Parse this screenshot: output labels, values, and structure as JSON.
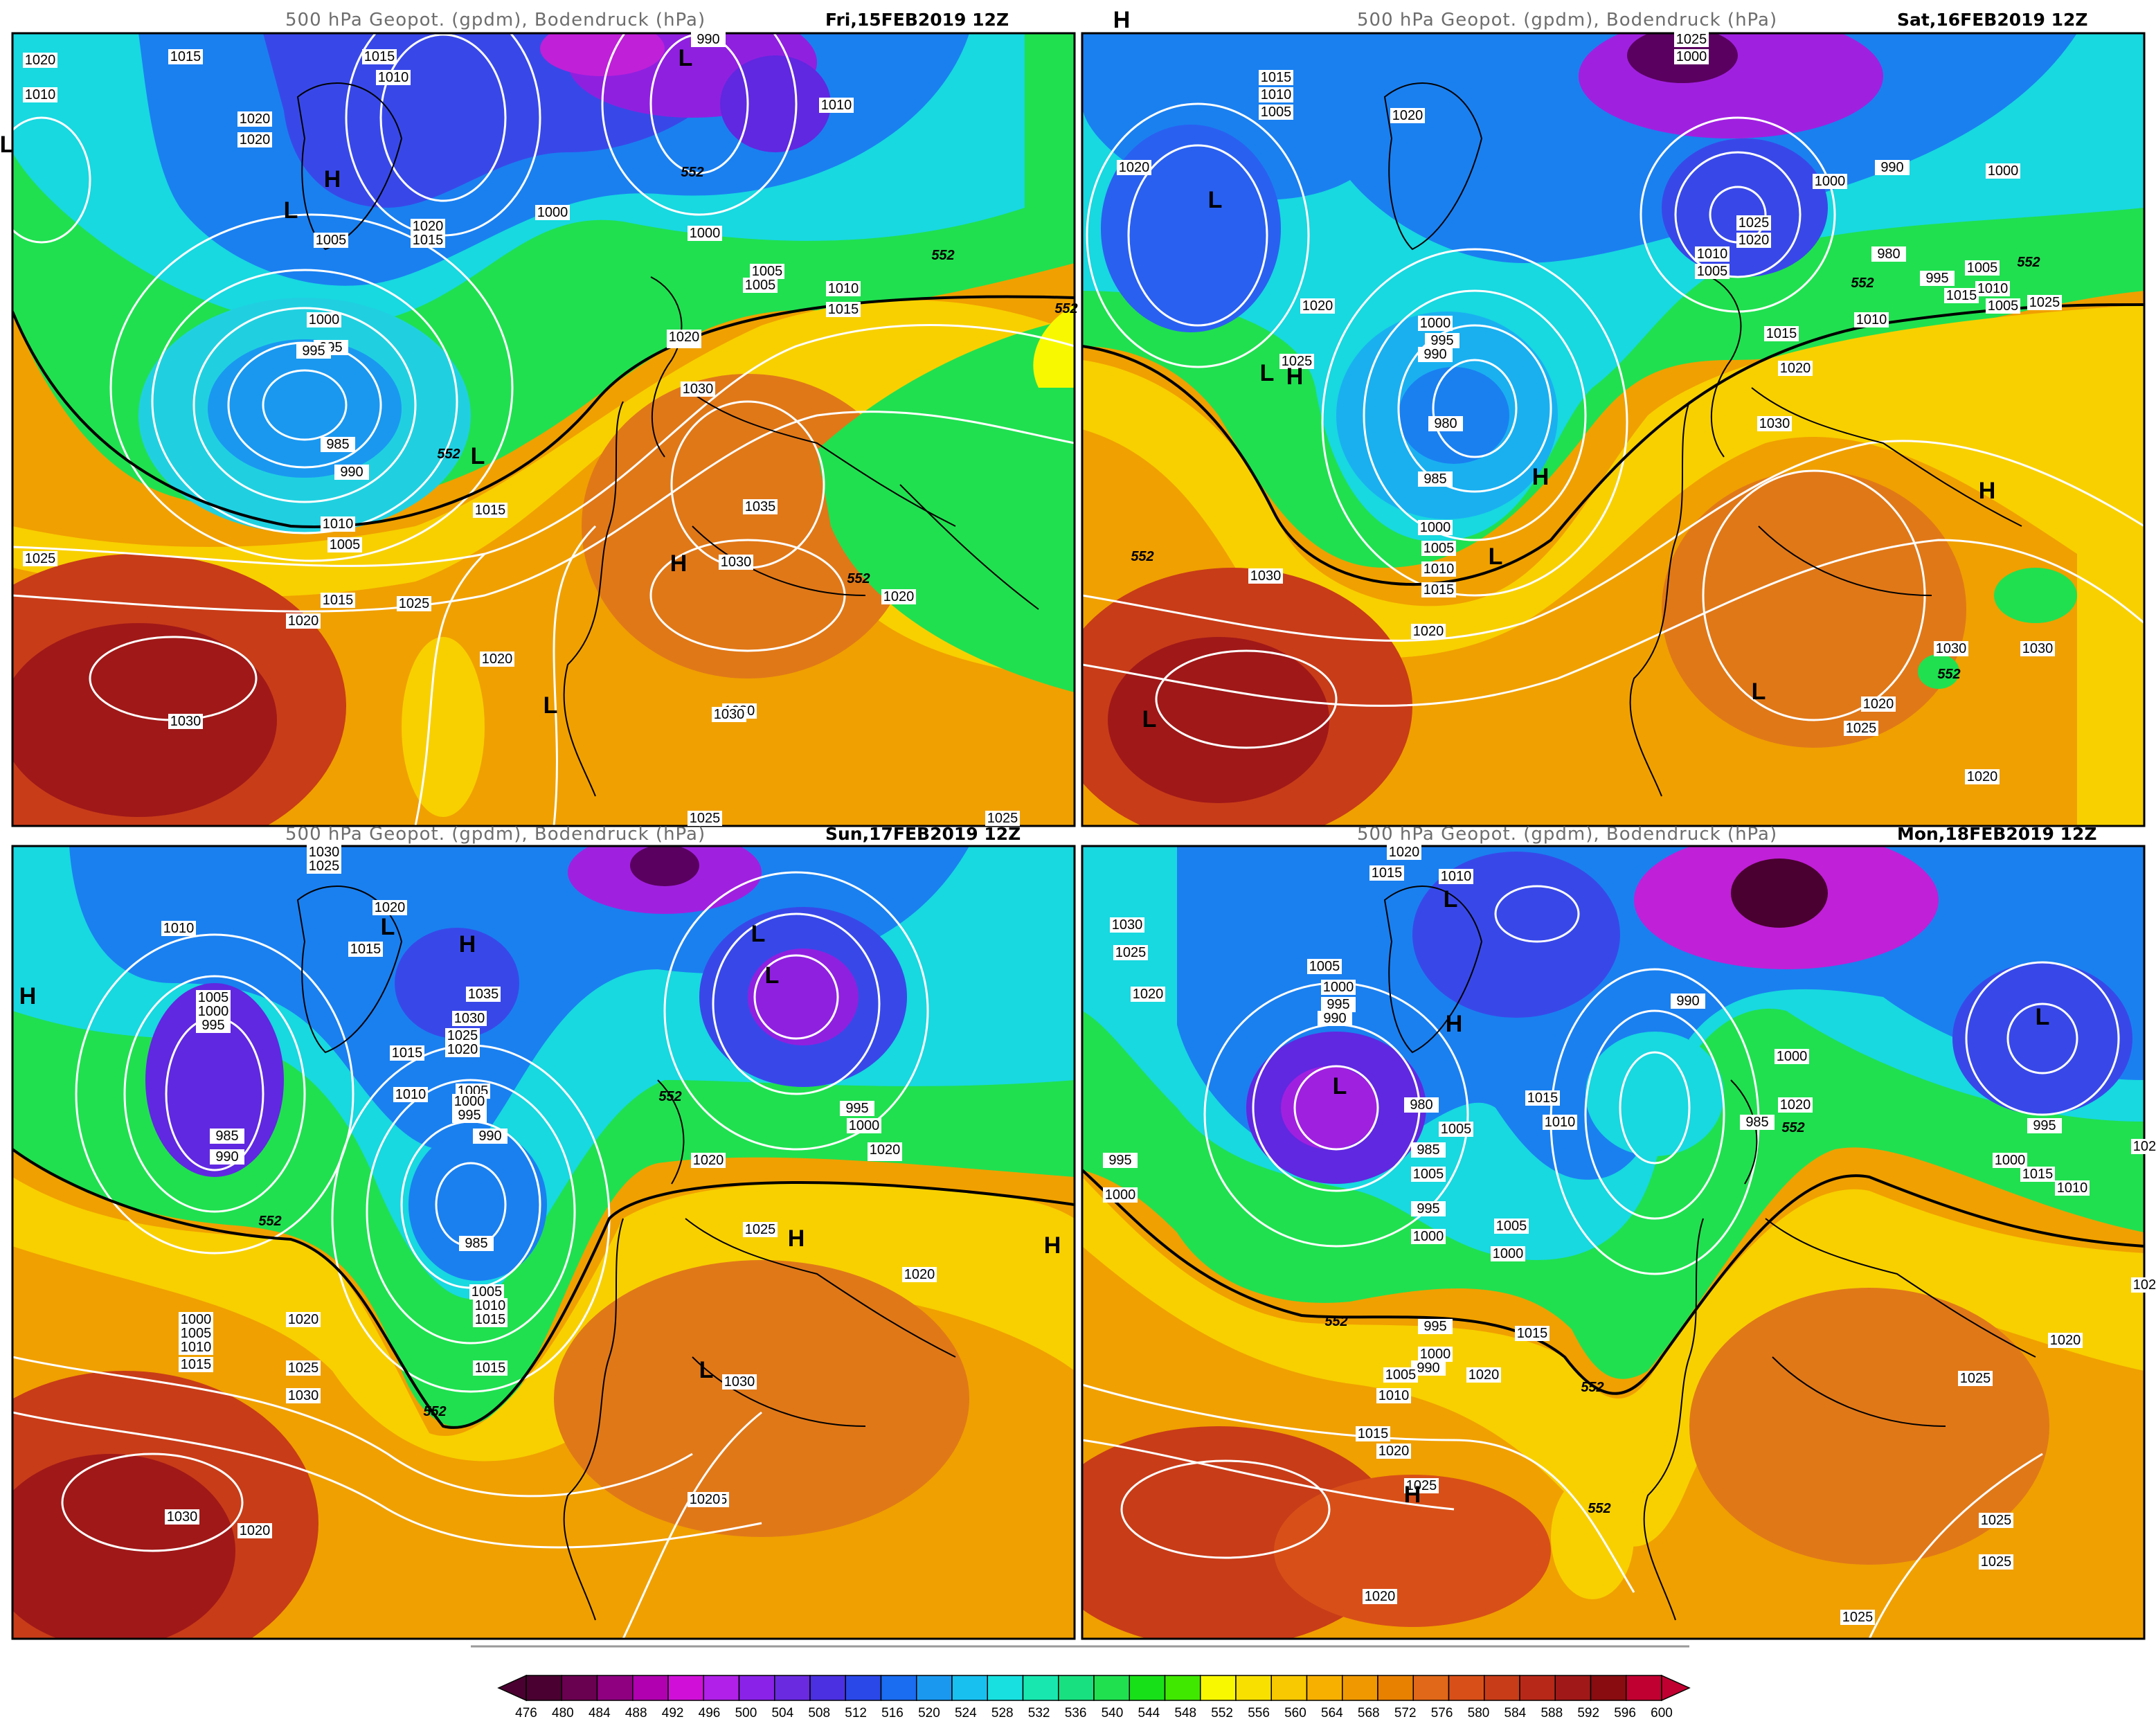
{
  "panels": [
    {
      "title": "500 hPa Geopot. (gpdm), Bodendruck (hPa)",
      "date": "Fri,15FEB2019 12Z",
      "isobar_labels": [
        "1020",
        "1015",
        "1015",
        "1010",
        "990",
        "1010",
        "1010",
        "1020",
        "1020",
        "1005",
        "1020",
        "1015",
        "1000",
        "995",
        "1000",
        "1005",
        "1010",
        "1015",
        "1020",
        "1025",
        "1030",
        "995",
        "985",
        "990",
        "1000",
        "1005",
        "1005",
        "1010",
        "1015",
        "1025",
        "1020",
        "1030",
        "1035",
        "1030",
        "1020",
        "1015",
        "1025",
        "1020",
        "1030",
        "1030",
        "1025",
        "1025"
      ],
      "height_labels": [
        "552",
        "552",
        "552",
        "552",
        "552"
      ],
      "systems": [
        "L",
        "H",
        "L",
        "L",
        "L",
        "H",
        "L"
      ]
    },
    {
      "title": "500 hPa Geopot. (gpdm), Bodendruck (hPa)",
      "date": "Sat,16FEB2019 12Z",
      "isobar_labels": [
        "1025",
        "1000",
        "1015",
        "1010",
        "1005",
        "1020",
        "1020",
        "990",
        "980",
        "995",
        "1000",
        "1000",
        "1005",
        "1010",
        "1025",
        "1020",
        "1010",
        "1005",
        "1020",
        "1025",
        "1000",
        "995",
        "990",
        "980",
        "985",
        "1000",
        "1005",
        "1010",
        "1015",
        "1020",
        "1030",
        "1030",
        "1030",
        "1020",
        "1025",
        "1020",
        "1030",
        "1015",
        "1005",
        "1010",
        "1015",
        "1020",
        "1025"
      ],
      "height_labels": [
        "552",
        "552",
        "552",
        "552"
      ],
      "systems": [
        "H",
        "L",
        "L",
        "L",
        "H",
        "H",
        "L",
        "L",
        "H"
      ]
    },
    {
      "title": "500 hPa Geopot. (gpdm), Bodendruck (hPa)",
      "date": "Sun,17FEB2019 12Z",
      "isobar_labels": [
        "1030",
        "1025",
        "1020",
        "1010",
        "1005",
        "1000",
        "995",
        "985",
        "990",
        "1015",
        "1035",
        "1030",
        "1025",
        "1020",
        "1015",
        "1010",
        "1005",
        "1000",
        "995",
        "990",
        "985",
        "995",
        "1000",
        "1005",
        "1010",
        "1015",
        "1015",
        "995",
        "1000",
        "1010",
        "1015",
        "1020",
        "1020",
        "1020",
        "1025",
        "1030",
        "1025",
        "1020",
        "1030",
        "1020",
        "1000",
        "1005",
        "1010",
        "1015",
        "1020",
        "1025",
        "1030"
      ],
      "height_labels": [
        "552",
        "552",
        "552"
      ],
      "systems": [
        "H",
        "L",
        "H",
        "L",
        "L",
        "H",
        "L",
        "H"
      ]
    },
    {
      "title": "500 hPa Geopot. (gpdm), Bodendruck (hPa)",
      "date": "Mon,18FEB2019 12Z",
      "isobar_labels": [
        "1020",
        "1015",
        "1010",
        "1030",
        "1025",
        "1020",
        "1005",
        "1000",
        "995",
        "990",
        "980",
        "985",
        "1005",
        "1010",
        "1015",
        "1020",
        "1000",
        "990",
        "985",
        "995",
        "1000",
        "1005",
        "1010",
        "1015",
        "1020",
        "1025",
        "1020",
        "1025",
        "1025",
        "1000",
        "995",
        "1005",
        "1005",
        "1000",
        "990",
        "995",
        "1000",
        "1005",
        "1010",
        "1015",
        "1020",
        "1025",
        "1015",
        "1020",
        "1025",
        "1025",
        "1020"
      ],
      "height_labels": [
        "552",
        "552",
        "552",
        "552"
      ],
      "systems": [
        "L",
        "H",
        "L",
        "L",
        "H"
      ]
    }
  ],
  "colorbar": {
    "ticks": [
      "476",
      "480",
      "484",
      "488",
      "492",
      "496",
      "500",
      "504",
      "508",
      "512",
      "516",
      "520",
      "524",
      "528",
      "532",
      "536",
      "540",
      "544",
      "548",
      "552",
      "556",
      "560",
      "564",
      "568",
      "572",
      "576",
      "580",
      "584",
      "588",
      "592",
      "596",
      "600"
    ],
    "colors": [
      "#4a0030",
      "#6a0050",
      "#8e0080",
      "#b000b0",
      "#d010d8",
      "#b020e8",
      "#8a22e8",
      "#6a2ae0",
      "#4a30e0",
      "#2a48e8",
      "#1a6cf0",
      "#1a98f0",
      "#18c0f0",
      "#18e0e0",
      "#18e8b0",
      "#18e080",
      "#20e050",
      "#18e018",
      "#40e800",
      "#f8f800",
      "#f8e000",
      "#f8c800",
      "#f8b000",
      "#f09800",
      "#e88000",
      "#e06818",
      "#d85018",
      "#c83c18",
      "#b82818",
      "#a01818",
      "#880c10",
      "#c00030"
    ]
  }
}
